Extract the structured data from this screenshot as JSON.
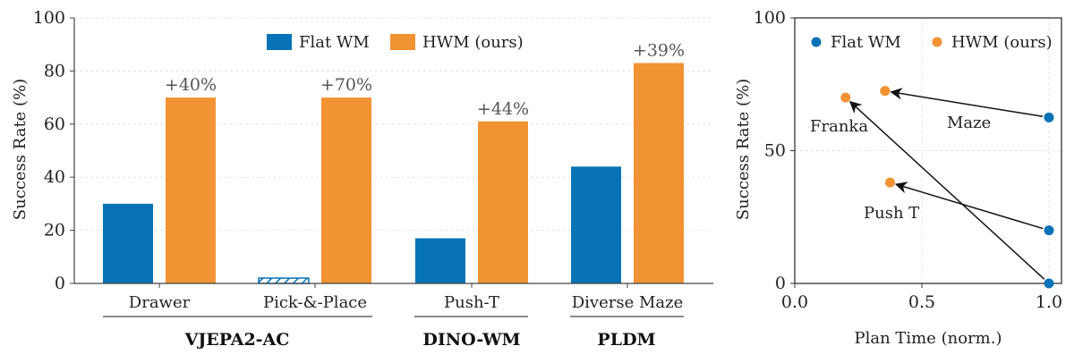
{
  "colors": {
    "flat": "#0872b6",
    "hwm": "#f19233"
  },
  "chart_data": [
    {
      "type": "bar",
      "ylabel": "Success Rate (%)",
      "ylim": [
        0,
        100
      ],
      "yticks": [
        "0",
        "20",
        "40",
        "60",
        "80",
        "100"
      ],
      "grid": true,
      "legend_placement": "top-center",
      "categories": [
        "Drawer",
        "Pick-&-Place",
        "Push-T",
        "Diverse Maze"
      ],
      "series": [
        {
          "name": "Flat WM",
          "values": [
            30,
            2,
            17,
            44
          ],
          "hatched": [
            false,
            true,
            false,
            false
          ]
        },
        {
          "name": "HWM (ours)",
          "values": [
            70,
            70,
            61,
            83
          ]
        }
      ],
      "annotations": [
        "+40%",
        "+70%",
        "+44%",
        "+39%"
      ],
      "groups": [
        {
          "label": "VJEPA2-AC",
          "categories": [
            "Drawer",
            "Pick-&-Place"
          ]
        },
        {
          "label": "DINO-WM",
          "categories": [
            "Push-T"
          ]
        },
        {
          "label": "PLDM",
          "categories": [
            "Diverse Maze"
          ]
        }
      ]
    },
    {
      "type": "scatter",
      "xlabel": "Plan Time (norm.)",
      "ylabel": "Success Rate (%)",
      "xlim": [
        0,
        1.0
      ],
      "ylim": [
        0,
        100
      ],
      "xticks": [
        "0.0",
        "0.5",
        "1.0"
      ],
      "yticks": [
        "0",
        "50",
        "100"
      ],
      "grid": true,
      "legend_placement": "top",
      "series": [
        {
          "name": "Flat WM",
          "points": [
            [
              1.0,
              62.5
            ],
            [
              1.0,
              20
            ],
            [
              1.0,
              0
            ]
          ]
        },
        {
          "name": "HWM (ours)",
          "points": [
            [
              0.355,
              72.5
            ],
            [
              0.2,
              70
            ],
            [
              0.375,
              38
            ]
          ]
        }
      ],
      "arrows": [
        {
          "label": "Maze",
          "from": [
            1.0,
            62.5
          ],
          "to": [
            0.355,
            72.5
          ]
        },
        {
          "label": "Franka",
          "from": [
            1.0,
            0
          ],
          "to": [
            0.2,
            70
          ]
        },
        {
          "label": "Push T",
          "from": [
            1.0,
            20
          ],
          "to": [
            0.375,
            38
          ]
        }
      ]
    }
  ]
}
